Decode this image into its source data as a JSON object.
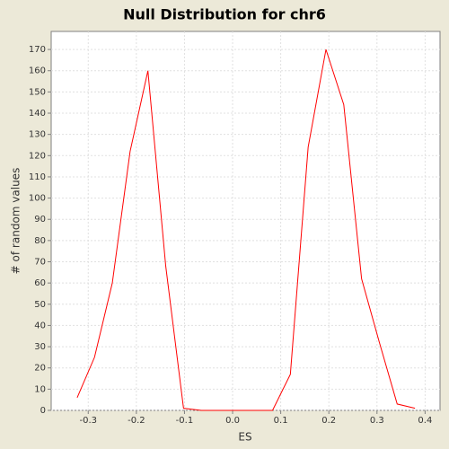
{
  "chart_data": {
    "type": "line",
    "title": "Null Distribution for chr6",
    "xlabel": "ES",
    "ylabel": "# of random values",
    "x": [
      -0.323,
      -0.287,
      -0.25,
      -0.213,
      -0.176,
      -0.139,
      -0.102,
      -0.065,
      -0.028,
      0.009,
      0.046,
      0.083,
      0.12,
      0.157,
      0.194,
      0.231,
      0.268,
      0.305,
      0.342,
      0.379
    ],
    "series": [
      {
        "name": "null",
        "color": "#ff0000",
        "values": [
          6,
          25,
          60,
          122,
          160,
          68,
          1,
          0,
          0,
          0,
          0,
          0,
          17,
          124,
          170,
          144,
          62,
          32,
          3,
          1
        ]
      }
    ],
    "xlim": [
      -0.377,
      0.431
    ],
    "ylim": [
      0,
      178.5
    ],
    "xticks": [
      -0.3,
      -0.2,
      -0.1,
      {
        "value": 0,
        "label": "0.0"
      },
      0.1,
      0.2,
      0.3,
      0.4
    ],
    "yticks": [
      0,
      10,
      20,
      30,
      40,
      50,
      60,
      70,
      80,
      90,
      100,
      110,
      120,
      130,
      140,
      150,
      160,
      170
    ],
    "grid": true
  }
}
